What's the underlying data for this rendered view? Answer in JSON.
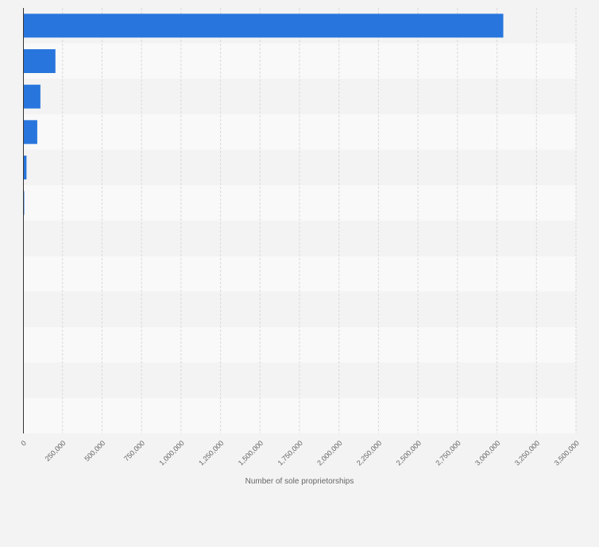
{
  "chart_data": {
    "type": "bar",
    "orientation": "horizontal",
    "title": "",
    "xlabel": "Number of sole proprietorships",
    "ylabel": "",
    "xlim": [
      0,
      3500000
    ],
    "x_ticks": [
      0,
      250000,
      500000,
      750000,
      1000000,
      1250000,
      1500000,
      1750000,
      2000000,
      2250000,
      2500000,
      2750000,
      3000000,
      3250000,
      3500000
    ],
    "x_tick_labels": [
      "0",
      "250,000",
      "500,000",
      "750,000",
      "1,000,000",
      "1,250,000",
      "1,500,000",
      "1,750,000",
      "2,000,000",
      "2,250,000",
      "2,500,000",
      "2,750,000",
      "3,000,000",
      "3,250,000",
      "3,500,000"
    ],
    "categories": [
      "",
      "",
      "",
      "",
      "",
      "",
      "",
      "",
      "",
      "",
      "",
      ""
    ],
    "values": [
      3040000,
      205000,
      110000,
      90000,
      22000,
      6000,
      0,
      0,
      0,
      0,
      0,
      0
    ],
    "grid": true,
    "bar_color": "#2876dd"
  }
}
